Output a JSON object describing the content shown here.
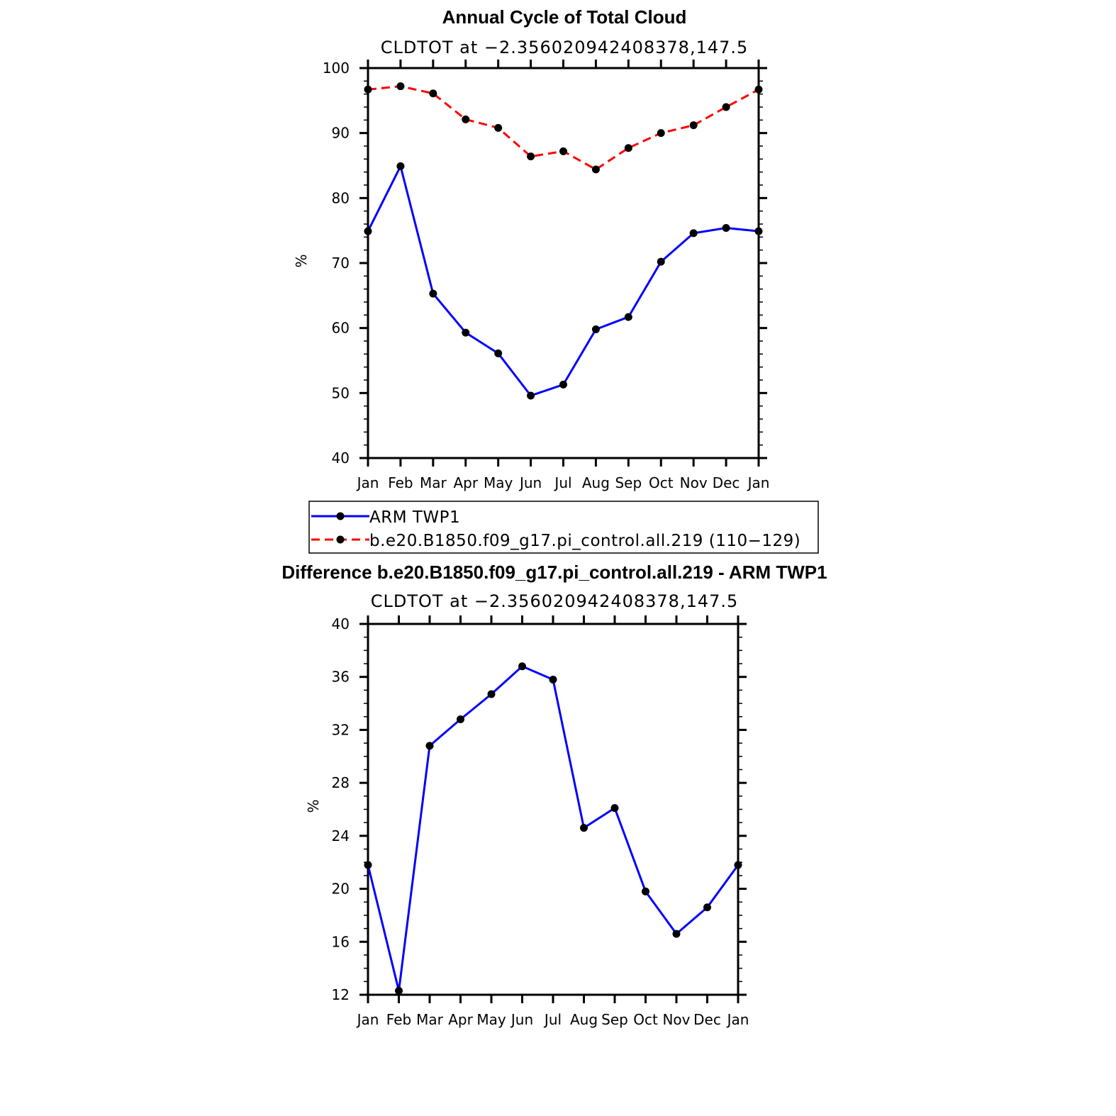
{
  "chart_data": [
    {
      "type": "line",
      "title": "Annual Cycle of Total Cloud",
      "subtitle": "CLDTOT at −2.356020942408378,147.5",
      "ylabel": "%",
      "xlabel": "",
      "categories": [
        "Jan",
        "Feb",
        "Mar",
        "Apr",
        "May",
        "Jun",
        "Jul",
        "Aug",
        "Sep",
        "Oct",
        "Nov",
        "Dec",
        "Jan"
      ],
      "ylim": [
        40,
        100
      ],
      "yticks": [
        40,
        50,
        60,
        70,
        80,
        90,
        100
      ],
      "grid": false,
      "legend_placement": "below",
      "series": [
        {
          "name": "ARM TWP1",
          "color": "#0000ff",
          "dash": "solid",
          "values": [
            74.9,
            84.9,
            65.3,
            59.3,
            56.1,
            49.6,
            51.3,
            59.8,
            61.7,
            70.2,
            74.6,
            75.4,
            74.9
          ]
        },
        {
          "name": "b.e20.B1850.f09_g17.pi_control.all.219 (110−129)",
          "color": "#ff0000",
          "dash": "dashed",
          "values": [
            96.7,
            97.2,
            96.1,
            92.1,
            90.8,
            86.4,
            87.2,
            84.4,
            87.7,
            90.0,
            91.2,
            94.0,
            96.7
          ]
        }
      ]
    },
    {
      "type": "line",
      "title": "Difference b.e20.B1850.f09_g17.pi_control.all.219 - ARM TWP1",
      "subtitle": "CLDTOT at −2.356020942408378,147.5",
      "ylabel": "%",
      "xlabel": "",
      "categories": [
        "Jan",
        "Feb",
        "Mar",
        "Apr",
        "May",
        "Jun",
        "Jul",
        "Aug",
        "Sep",
        "Oct",
        "Nov",
        "Dec",
        "Jan"
      ],
      "ylim": [
        12,
        40
      ],
      "yticks": [
        12,
        16,
        20,
        24,
        28,
        32,
        36,
        40
      ],
      "grid": false,
      "series": [
        {
          "color": "#0000ff",
          "dash": "solid",
          "values": [
            21.8,
            12.3,
            30.8,
            32.8,
            34.7,
            36.8,
            35.8,
            24.6,
            26.1,
            19.8,
            16.6,
            18.6,
            21.8
          ]
        }
      ]
    }
  ]
}
